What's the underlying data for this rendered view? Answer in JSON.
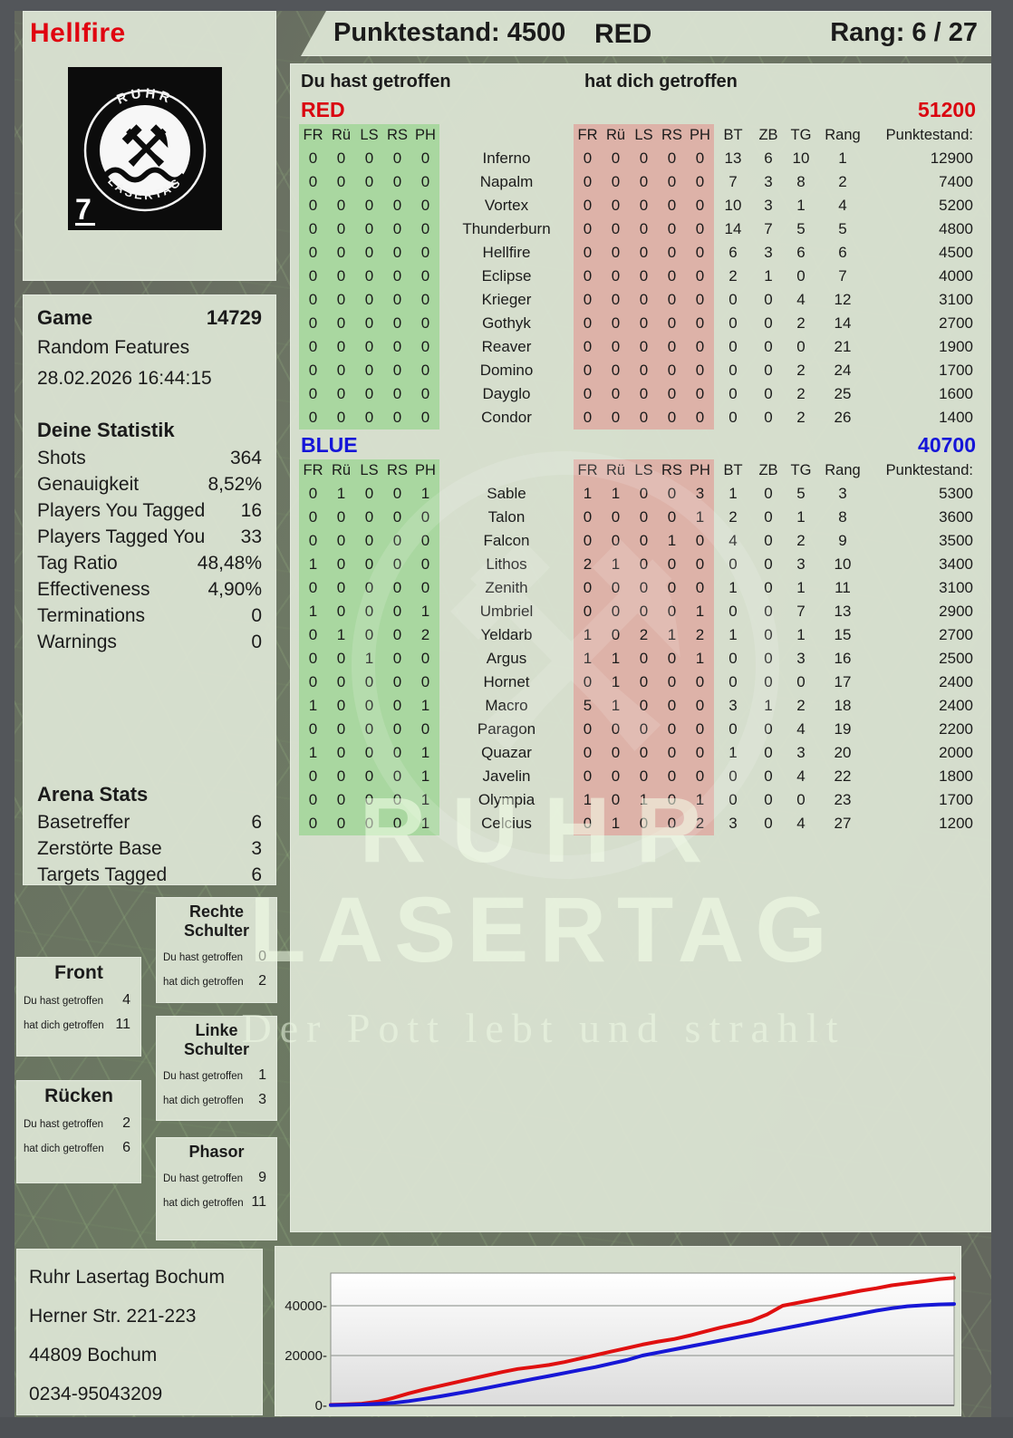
{
  "header": {
    "player": "Hellfire",
    "score_label": "Punktestand: 4500",
    "team": "RED",
    "rank_label": "Rang: 6 / 27"
  },
  "logo": {
    "top": "RUHR",
    "bottom": "LASERTAG",
    "corner": "7"
  },
  "columns": {
    "hit_you": "Du hast getroffen",
    "hit_them": "hat dich getroffen",
    "zones": [
      "FR",
      "Rü",
      "LS",
      "RS",
      "PH"
    ],
    "stats": [
      "BT",
      "ZB",
      "TG",
      "Rang",
      "Punktestand:"
    ]
  },
  "teams": [
    {
      "name": "RED",
      "color": "#da0510",
      "total": "51200",
      "rows": [
        {
          "name": "Inferno",
          "you": [
            0,
            0,
            0,
            0,
            0
          ],
          "them": [
            0,
            0,
            0,
            0,
            0
          ],
          "bt": 13,
          "zb": 6,
          "tg": 10,
          "rang": 1,
          "score": 12900
        },
        {
          "name": "Napalm",
          "you": [
            0,
            0,
            0,
            0,
            0
          ],
          "them": [
            0,
            0,
            0,
            0,
            0
          ],
          "bt": 7,
          "zb": 3,
          "tg": 8,
          "rang": 2,
          "score": 7400
        },
        {
          "name": "Vortex",
          "you": [
            0,
            0,
            0,
            0,
            0
          ],
          "them": [
            0,
            0,
            0,
            0,
            0
          ],
          "bt": 10,
          "zb": 3,
          "tg": 1,
          "rang": 4,
          "score": 5200
        },
        {
          "name": "Thunderburn",
          "you": [
            0,
            0,
            0,
            0,
            0
          ],
          "them": [
            0,
            0,
            0,
            0,
            0
          ],
          "bt": 14,
          "zb": 7,
          "tg": 5,
          "rang": 5,
          "score": 4800
        },
        {
          "name": "Hellfire",
          "you": [
            0,
            0,
            0,
            0,
            0
          ],
          "them": [
            0,
            0,
            0,
            0,
            0
          ],
          "bt": 6,
          "zb": 3,
          "tg": 6,
          "rang": 6,
          "score": 4500
        },
        {
          "name": "Eclipse",
          "you": [
            0,
            0,
            0,
            0,
            0
          ],
          "them": [
            0,
            0,
            0,
            0,
            0
          ],
          "bt": 2,
          "zb": 1,
          "tg": 0,
          "rang": 7,
          "score": 4000
        },
        {
          "name": "Krieger",
          "you": [
            0,
            0,
            0,
            0,
            0
          ],
          "them": [
            0,
            0,
            0,
            0,
            0
          ],
          "bt": 0,
          "zb": 0,
          "tg": 4,
          "rang": 12,
          "score": 3100
        },
        {
          "name": "Gothyk",
          "you": [
            0,
            0,
            0,
            0,
            0
          ],
          "them": [
            0,
            0,
            0,
            0,
            0
          ],
          "bt": 0,
          "zb": 0,
          "tg": 2,
          "rang": 14,
          "score": 2700
        },
        {
          "name": "Reaver",
          "you": [
            0,
            0,
            0,
            0,
            0
          ],
          "them": [
            0,
            0,
            0,
            0,
            0
          ],
          "bt": 0,
          "zb": 0,
          "tg": 0,
          "rang": 21,
          "score": 1900
        },
        {
          "name": "Domino",
          "you": [
            0,
            0,
            0,
            0,
            0
          ],
          "them": [
            0,
            0,
            0,
            0,
            0
          ],
          "bt": 0,
          "zb": 0,
          "tg": 2,
          "rang": 24,
          "score": 1700
        },
        {
          "name": "Dayglo",
          "you": [
            0,
            0,
            0,
            0,
            0
          ],
          "them": [
            0,
            0,
            0,
            0,
            0
          ],
          "bt": 0,
          "zb": 0,
          "tg": 2,
          "rang": 25,
          "score": 1600
        },
        {
          "name": "Condor",
          "you": [
            0,
            0,
            0,
            0,
            0
          ],
          "them": [
            0,
            0,
            0,
            0,
            0
          ],
          "bt": 0,
          "zb": 0,
          "tg": 2,
          "rang": 26,
          "score": 1400
        }
      ]
    },
    {
      "name": "BLUE",
      "color": "#1515d8",
      "total": "40700",
      "rows": [
        {
          "name": "Sable",
          "you": [
            0,
            1,
            0,
            0,
            1
          ],
          "them": [
            1,
            1,
            0,
            0,
            3
          ],
          "bt": 1,
          "zb": 0,
          "tg": 5,
          "rang": 3,
          "score": 5300
        },
        {
          "name": "Talon",
          "you": [
            0,
            0,
            0,
            0,
            0
          ],
          "them": [
            0,
            0,
            0,
            0,
            1
          ],
          "bt": 2,
          "zb": 0,
          "tg": 1,
          "rang": 8,
          "score": 3600
        },
        {
          "name": "Falcon",
          "you": [
            0,
            0,
            0,
            0,
            0
          ],
          "them": [
            0,
            0,
            0,
            1,
            0
          ],
          "bt": 4,
          "zb": 0,
          "tg": 2,
          "rang": 9,
          "score": 3500
        },
        {
          "name": "Lithos",
          "you": [
            1,
            0,
            0,
            0,
            0
          ],
          "them": [
            2,
            1,
            0,
            0,
            0
          ],
          "bt": 0,
          "zb": 0,
          "tg": 3,
          "rang": 10,
          "score": 3400
        },
        {
          "name": "Zenith",
          "you": [
            0,
            0,
            0,
            0,
            0
          ],
          "them": [
            0,
            0,
            0,
            0,
            0
          ],
          "bt": 1,
          "zb": 0,
          "tg": 1,
          "rang": 11,
          "score": 3100
        },
        {
          "name": "Umbriel",
          "you": [
            1,
            0,
            0,
            0,
            1
          ],
          "them": [
            0,
            0,
            0,
            0,
            1
          ],
          "bt": 0,
          "zb": 0,
          "tg": 7,
          "rang": 13,
          "score": 2900
        },
        {
          "name": "Yeldarb",
          "you": [
            0,
            1,
            0,
            0,
            2
          ],
          "them": [
            1,
            0,
            2,
            1,
            2
          ],
          "bt": 1,
          "zb": 0,
          "tg": 1,
          "rang": 15,
          "score": 2700
        },
        {
          "name": "Argus",
          "you": [
            0,
            0,
            1,
            0,
            0
          ],
          "them": [
            1,
            1,
            0,
            0,
            1
          ],
          "bt": 0,
          "zb": 0,
          "tg": 3,
          "rang": 16,
          "score": 2500
        },
        {
          "name": "Hornet",
          "you": [
            0,
            0,
            0,
            0,
            0
          ],
          "them": [
            0,
            1,
            0,
            0,
            0
          ],
          "bt": 0,
          "zb": 0,
          "tg": 0,
          "rang": 17,
          "score": 2400
        },
        {
          "name": "Macro",
          "you": [
            1,
            0,
            0,
            0,
            1
          ],
          "them": [
            5,
            1,
            0,
            0,
            0
          ],
          "bt": 3,
          "zb": 1,
          "tg": 2,
          "rang": 18,
          "score": 2400
        },
        {
          "name": "Paragon",
          "you": [
            0,
            0,
            0,
            0,
            0
          ],
          "them": [
            0,
            0,
            0,
            0,
            0
          ],
          "bt": 0,
          "zb": 0,
          "tg": 4,
          "rang": 19,
          "score": 2200
        },
        {
          "name": "Quazar",
          "you": [
            1,
            0,
            0,
            0,
            1
          ],
          "them": [
            0,
            0,
            0,
            0,
            0
          ],
          "bt": 1,
          "zb": 0,
          "tg": 3,
          "rang": 20,
          "score": 2000
        },
        {
          "name": "Javelin",
          "you": [
            0,
            0,
            0,
            0,
            1
          ],
          "them": [
            0,
            0,
            0,
            0,
            0
          ],
          "bt": 0,
          "zb": 0,
          "tg": 4,
          "rang": 22,
          "score": 1800
        },
        {
          "name": "Olympia",
          "you": [
            0,
            0,
            0,
            0,
            1
          ],
          "them": [
            1,
            0,
            1,
            0,
            1
          ],
          "bt": 0,
          "zb": 0,
          "tg": 0,
          "rang": 23,
          "score": 1700
        },
        {
          "name": "Celcius",
          "you": [
            0,
            0,
            0,
            0,
            1
          ],
          "them": [
            0,
            1,
            0,
            0,
            2
          ],
          "bt": 3,
          "zb": 0,
          "tg": 4,
          "rang": 27,
          "score": 1200
        }
      ]
    }
  ],
  "game": {
    "label": "Game",
    "number": "14729",
    "mode": "Random Features",
    "datetime": "28.02.2026 16:44:15"
  },
  "your_stats": {
    "title": "Deine Statistik",
    "rows": [
      [
        "Shots",
        "364"
      ],
      [
        "Genauigkeit",
        "8,52%"
      ],
      [
        "Players You Tagged",
        "16"
      ],
      [
        "Players Tagged You",
        "33"
      ],
      [
        "Tag Ratio",
        "48,48%"
      ],
      [
        "Effectiveness",
        "4,90%"
      ],
      [
        "Terminations",
        "0"
      ],
      [
        "Warnings",
        "0"
      ]
    ]
  },
  "arena_stats": {
    "title": "Arena Stats",
    "rows": [
      [
        "Basetreffer",
        "6"
      ],
      [
        "Zerstörte Base",
        "3"
      ],
      [
        "Targets Tagged",
        "6"
      ]
    ]
  },
  "zone_row_labels": {
    "you": "Du hast getroffen",
    "them": "hat dich getroffen"
  },
  "zones": [
    {
      "title": "Rechte Schulter",
      "you": "0",
      "them": "2"
    },
    {
      "title": "Front",
      "you": "4",
      "them": "11"
    },
    {
      "title": "Linke Schulter",
      "you": "1",
      "them": "3"
    },
    {
      "title": "Rücken",
      "you": "2",
      "them": "6"
    },
    {
      "title": "Phasor",
      "you": "9",
      "them": "11"
    }
  ],
  "address": {
    "lines": [
      "Ruhr Lasertag Bochum",
      "Herner Str. 221-223",
      "44809 Bochum",
      "0234-95043209"
    ]
  },
  "watermark": {
    "line1": "RUHR",
    "line2": "LASERTAG",
    "line3": "Der Pott lebt und strahlt"
  },
  "chart_data": {
    "type": "line",
    "title": "",
    "xlabel": "",
    "ylabel": "",
    "yticks": [
      0,
      20000,
      40000
    ],
    "ytick_labels": [
      "0-",
      "20000-",
      "40000-"
    ],
    "ylim": [
      0,
      53000
    ],
    "grid": true,
    "legend": "none",
    "series": [
      {
        "name": "RED",
        "color": "#e01010",
        "values": [
          200,
          400,
          700,
          1500,
          3000,
          4800,
          6400,
          7800,
          9200,
          10600,
          12000,
          13400,
          14600,
          15400,
          16200,
          17400,
          18800,
          20200,
          21600,
          23000,
          24400,
          25600,
          26600,
          28000,
          29600,
          31200,
          32600,
          34000,
          36500,
          40000,
          41200,
          42400,
          43600,
          44800,
          46000,
          47000,
          48200,
          49000,
          49800,
          50600,
          51200
        ]
      },
      {
        "name": "BLUE",
        "color": "#1717d6",
        "values": [
          100,
          200,
          350,
          600,
          1000,
          1700,
          2600,
          3600,
          4700,
          5800,
          7000,
          8200,
          9400,
          10600,
          11800,
          13000,
          14200,
          15400,
          16800,
          18200,
          20000,
          21200,
          22400,
          23600,
          24800,
          26000,
          27200,
          28400,
          29600,
          30800,
          32000,
          33200,
          34400,
          35600,
          36800,
          38000,
          39000,
          39800,
          40200,
          40500,
          40700
        ]
      }
    ]
  }
}
